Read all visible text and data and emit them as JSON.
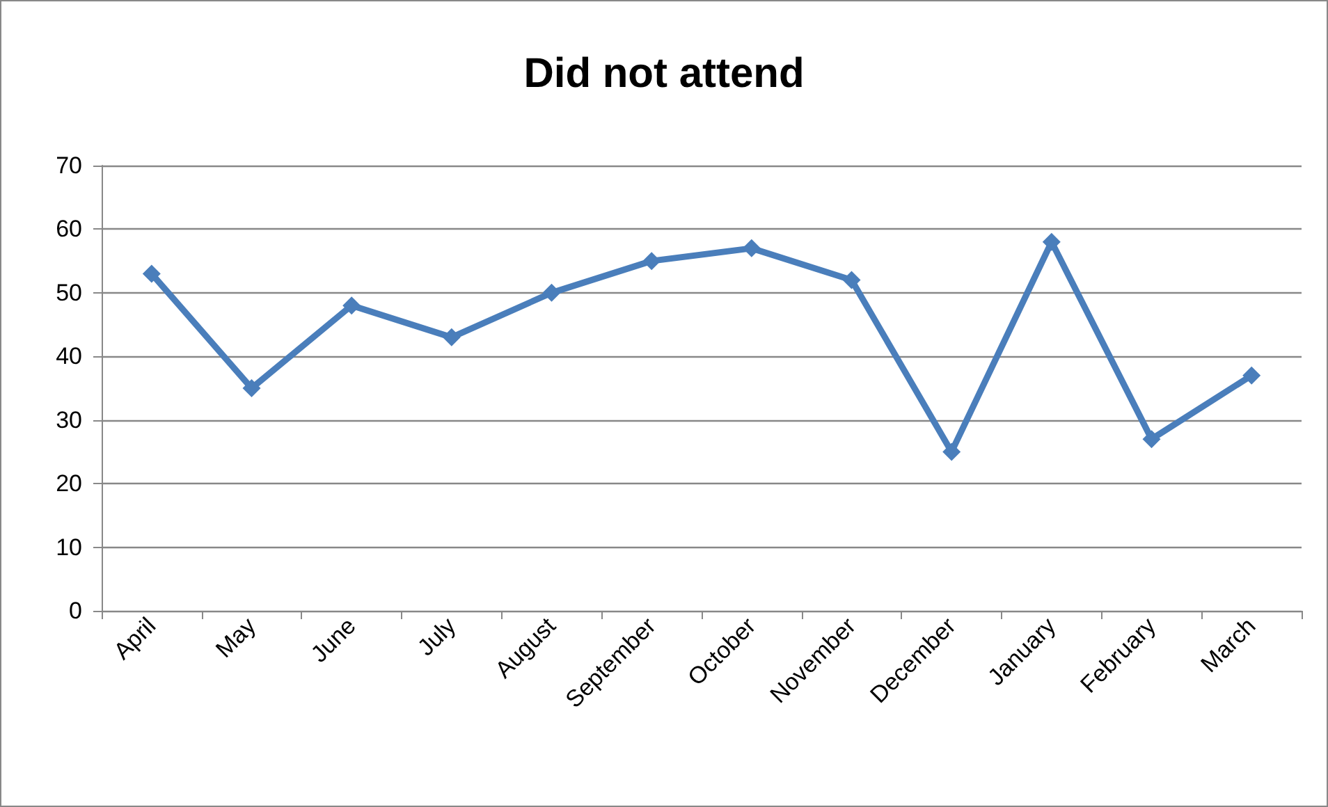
{
  "chart_data": {
    "type": "line",
    "title": "Did not attend",
    "categories": [
      "April",
      "May",
      "June",
      "July",
      "August",
      "September",
      "October",
      "November",
      "December",
      "January",
      "February",
      "March"
    ],
    "series": [
      {
        "color": "#4a7ebb",
        "values": [
          53,
          35,
          48,
          43,
          50,
          55,
          57,
          52,
          25,
          58,
          27,
          37
        ]
      }
    ],
    "ylim": [
      0,
      70
    ],
    "yticks": [
      0,
      10,
      20,
      30,
      40,
      50,
      60,
      70
    ],
    "grid": "y",
    "marker": "diamond",
    "line_style": "solid"
  }
}
